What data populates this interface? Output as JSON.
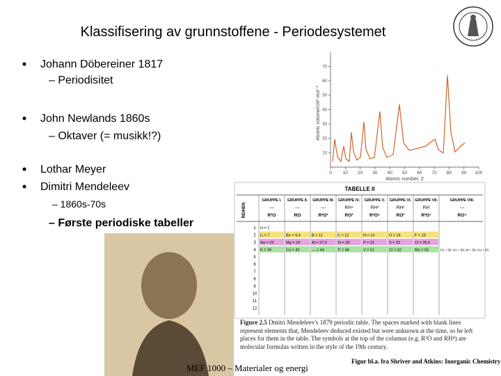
{
  "title": "Klassifisering av grunnstoffene -  Periodesystemet",
  "bullets": [
    {
      "text": "Johann Döbereiner 1817",
      "sub": [
        "– Periodisitet"
      ]
    },
    {
      "text": "John Newlands 1860s",
      "sub": [
        "– Oktaver (= musikk!?)"
      ]
    },
    {
      "text": "Lothar Meyer",
      "sub": []
    },
    {
      "text": "Dimitri Mendeleev",
      "sub": [
        "– 1860s-70s",
        "– Første periodiske tabeller"
      ]
    }
  ],
  "graph": {
    "ylabel": "Atomic volume/cm³ mol⁻¹",
    "xlabel": "Atomic number, Z",
    "yticks": [
      10,
      20,
      30,
      40,
      50,
      60,
      70
    ],
    "xticks": [
      0,
      10,
      20,
      30,
      40,
      50,
      60,
      70,
      80,
      90,
      100
    ]
  },
  "table": {
    "title": "TABELLE II",
    "rows_label": "REIHEN",
    "groups": [
      "GRUPPE I.",
      "GRUPPE II.",
      "GRUPPE III.",
      "GRUPPE IV.",
      "GRUPPE V.",
      "GRUPPE VI.",
      "GRUPPE VII.",
      "GRUPPE VIII."
    ],
    "hydrides": [
      "—",
      "—",
      "—",
      "RH⁴",
      "RH³",
      "RH²",
      "RH",
      "—"
    ],
    "oxides": [
      "R²O",
      "RO",
      "R²O³",
      "RO²",
      "R²O⁵",
      "RO³",
      "R²O⁷",
      "RO⁴"
    ],
    "row_numbers": [
      "1",
      "2",
      "3",
      "4",
      "5",
      "6",
      "7",
      "8",
      "9",
      "10",
      "11",
      "12"
    ],
    "cells": [
      [
        "H = 1",
        "",
        "",
        "",
        "",
        "",
        "",
        ""
      ],
      [
        "Li = 7",
        "Be = 9,4",
        "B = 11",
        "C = 12",
        "N = 14",
        "O = 16",
        "F = 19",
        ""
      ],
      [
        "Na = 23",
        "Mg = 24",
        "Al = 27,3",
        "Si = 28",
        "P = 31",
        "S = 32",
        "Cl = 35,5",
        ""
      ],
      [
        "K = 39",
        "Ca = 40",
        "— = 44",
        "Ti = 48",
        "V = 51",
        "Cr = 52",
        "Mn = 55",
        "Fe = 56, Co = 59, Ni = 59, Cu = 63."
      ]
    ]
  },
  "caption": {
    "label": "Figure 2.5",
    "text": "Dmitri Mendeleev's 1879 periodic table. The spaces marked with blank lines represent elements that, Mendeleev deduced existed but were unknown at the time, so he left places for them in the table. The symbols at the top of the columns (e.g. R²O and RH⁴) are molecular formulas written in the style of the 19th century."
  },
  "footer": "MEF 1000 – Materialer og energi",
  "credit": "Figur bl.a. fra Shriver and Atkins: Inorganic Chemistry"
}
